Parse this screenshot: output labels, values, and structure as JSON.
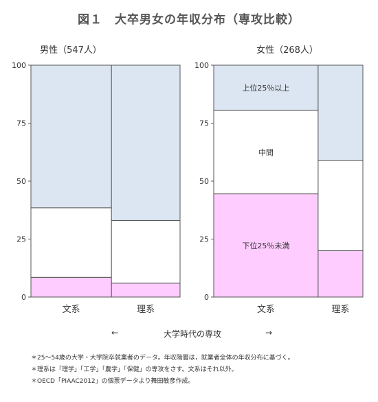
{
  "title": "図１　大卒男女の年収分布（専攻比較）",
  "colors": {
    "top": "#dce6f2",
    "middle": "#ffffff",
    "bottom": "#ffccff",
    "border": "#555555"
  },
  "chart_data": [
    {
      "type": "bar",
      "stacked": true,
      "title": "男性（547人）",
      "categories": [
        "文系",
        "理系"
      ],
      "ylim": [
        0,
        100
      ],
      "yticks": [
        0,
        25,
        50,
        75,
        100
      ],
      "widths": [
        0.54,
        0.46
      ],
      "series": [
        {
          "name": "下位25％未満",
          "values": [
            8.5,
            6
          ]
        },
        {
          "name": "中間",
          "values": [
            30,
            27
          ]
        },
        {
          "name": "上位25％以上",
          "values": [
            61.5,
            67
          ]
        }
      ]
    },
    {
      "type": "bar",
      "stacked": true,
      "title": "女性（268人）",
      "categories": [
        "文系",
        "理系"
      ],
      "ylim": [
        0,
        100
      ],
      "yticks": [
        0,
        25,
        50,
        75,
        100
      ],
      "widths": [
        0.7,
        0.3
      ],
      "series": [
        {
          "name": "下位25％未満",
          "values": [
            44.5,
            20
          ]
        },
        {
          "name": "中間",
          "values": [
            36,
            39
          ]
        },
        {
          "name": "上位25％以上",
          "values": [
            19.5,
            41
          ]
        }
      ]
    }
  ],
  "xlabel": "大学時代の専攻",
  "arrow_left": "←",
  "arrow_right": "→",
  "notes": [
    "＊25～54歳の大学・大学院卒就業者のデータ。年収階層は，就業者全体の年収分布に基づく。",
    "＊理系は「理学」「工学」「農学」「保健」の専攻をさす。文系はそれ以外。",
    "＊OECD「PIAAC2012」の個票データより舞田敏彦作成。"
  ]
}
